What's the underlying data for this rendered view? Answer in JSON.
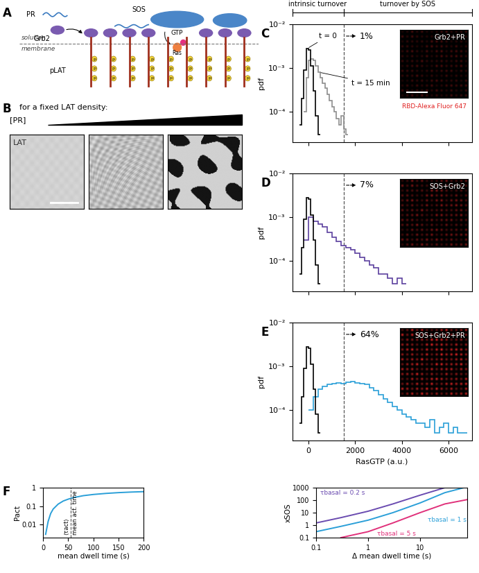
{
  "panel_labels": [
    "A",
    "B",
    "C",
    "D",
    "E",
    "F"
  ],
  "diagram": {
    "pr": "PR",
    "sos": "SOS",
    "grb2": "Grb2",
    "gtp": "GTP",
    "solution": "solution",
    "membrane": "membrane",
    "plat": "pLAT",
    "ras": "Ras",
    "phospho": "p"
  },
  "panel_b": {
    "title": "for a fixed LAT density:",
    "gradient_label": "[PR]",
    "image_label": "LAT"
  },
  "header": {
    "left": "intrinsic turnover",
    "right": "turnover by SOS"
  },
  "chart_data": [
    {
      "type": "histogram",
      "ylabel": "pdf",
      "log": "y",
      "tick_labels": "y",
      "xlim": [
        -700,
        7000
      ],
      "xticks": [
        0,
        2000,
        4000,
        6000
      ],
      "ylim": [
        2e-05,
        0.01
      ],
      "yticks": [
        {
          "value": 0.0001,
          "label": "10⁻⁴"
        },
        {
          "value": 0.001,
          "label": "10⁻³"
        },
        {
          "value": 0.01,
          "label": "10⁻²"
        }
      ],
      "threshold": 1500,
      "threshold_label": "1%",
      "inset_title": "Grb2+PR",
      "inset_caption": "RBD-Alexa Fluor 647",
      "series": [
        {
          "name": "t = 15 min",
          "color": "#8c8c8c",
          "bins": [
            -200,
            -100,
            0,
            100,
            200,
            300,
            400,
            500,
            600,
            700,
            800,
            900,
            1000,
            1100,
            1200,
            1300,
            1400,
            1500,
            1600,
            1700
          ],
          "counts": [
            0.0001,
            0.0006,
            0.0015,
            0.0016,
            0.0015,
            0.0011,
            0.0008,
            0.0006,
            0.00045,
            0.00035,
            0.00025,
            0.00018,
            0.00013,
            0.0001,
            7e-05,
            5e-05,
            8e-05,
            4e-05,
            3e-05
          ]
        },
        {
          "name": "t = 0",
          "color": "#000000",
          "bins": [
            -400,
            -300,
            -200,
            -100,
            0,
            100,
            200,
            300,
            400,
            500
          ],
          "counts": [
            5e-05,
            0.0002,
            0.0009,
            0.0028,
            0.0026,
            0.0011,
            0.0003,
            8e-05,
            3e-05
          ]
        }
      ]
    },
    {
      "type": "histogram",
      "ylabel": "pdf",
      "log": "y",
      "tick_labels": "y",
      "xlim": [
        -700,
        7000
      ],
      "xticks": [
        0,
        2000,
        4000,
        6000
      ],
      "ylim": [
        2e-05,
        0.01
      ],
      "yticks": [
        {
          "value": 0.0001,
          "label": "10⁻⁴"
        },
        {
          "value": 0.001,
          "label": "10⁻³"
        },
        {
          "value": 0.01,
          "label": "10⁻²"
        }
      ],
      "threshold": 1500,
      "threshold_label": "7%",
      "inset_title": "SOS+Grb2",
      "series": [
        {
          "color": "#5b3f9e",
          "bins": [
            -200,
            0,
            200,
            400,
            600,
            800,
            1000,
            1200,
            1400,
            1600,
            1800,
            2000,
            2200,
            2400,
            2600,
            2800,
            3000,
            3200,
            3400,
            3600,
            3800,
            4000,
            4200
          ],
          "counts": [
            0.0003,
            0.001,
            0.0008,
            0.0007,
            0.0006,
            0.00045,
            0.00035,
            0.00028,
            0.00022,
            0.0002,
            0.00018,
            0.00015,
            0.00012,
            0.0001,
            8e-05,
            7e-05,
            5e-05,
            5e-05,
            4e-05,
            3e-05,
            4e-05,
            3e-05
          ]
        },
        {
          "color": "#000000",
          "bins": [
            -400,
            -300,
            -200,
            -100,
            0,
            100,
            200,
            300,
            400,
            500
          ],
          "counts": [
            5e-05,
            0.0002,
            0.0009,
            0.0028,
            0.0026,
            0.0011,
            0.0003,
            8e-05,
            3e-05
          ]
        }
      ]
    },
    {
      "type": "histogram",
      "ylabel": "pdf",
      "xlabel": "RasGTP (a.u.)",
      "log": "y",
      "xlim": [
        -700,
        7000
      ],
      "xticks": [
        0,
        2000,
        4000,
        6000
      ],
      "ylim": [
        2e-05,
        0.01
      ],
      "yticks": [
        {
          "value": 0.0001,
          "label": "10⁻⁴"
        },
        {
          "value": 0.001,
          "label": "10⁻³"
        },
        {
          "value": 0.01,
          "label": "10⁻²"
        }
      ],
      "threshold": 1500,
      "threshold_label": "64%",
      "inset_title": "SOS+Grb2+PR",
      "series": [
        {
          "color": "#2a9fd8",
          "bins": [
            0,
            200,
            400,
            600,
            800,
            1000,
            1200,
            1400,
            1600,
            1800,
            2000,
            2200,
            2400,
            2600,
            2800,
            3000,
            3200,
            3400,
            3600,
            3800,
            4000,
            4200,
            4400,
            4600,
            4800,
            5000,
            5200,
            5400,
            5600,
            5800,
            6000,
            6200,
            6400,
            6600,
            6800
          ],
          "counts": [
            0.0001,
            0.0002,
            0.0003,
            0.00035,
            0.00038,
            0.0004,
            0.00042,
            0.0004,
            0.00043,
            0.00045,
            0.00042,
            0.0004,
            0.00038,
            0.00032,
            0.00028,
            0.00022,
            0.00018,
            0.00015,
            0.00012,
            0.0001,
            8e-05,
            7e-05,
            6e-05,
            5e-05,
            5e-05,
            4e-05,
            6e-05,
            3e-05,
            4e-05,
            5e-05,
            3e-05,
            4e-05,
            3e-05,
            3e-05
          ]
        },
        {
          "color": "#000000",
          "bins": [
            -400,
            -300,
            -200,
            -100,
            0,
            100,
            200,
            300,
            400,
            500
          ],
          "counts": [
            5e-05,
            0.0002,
            0.0009,
            0.0028,
            0.0026,
            0.0011,
            0.0003,
            8e-05,
            3e-05
          ]
        }
      ]
    },
    {
      "type": "line",
      "xlabel": "mean dwell time (s)",
      "ylabel": "Pact",
      "log": "y",
      "xlim": [
        0,
        200
      ],
      "xticks": [
        0,
        50,
        100,
        150,
        200
      ],
      "ylim": [
        0.002,
        1
      ],
      "yticks": [
        0.01,
        0.1,
        1
      ],
      "vline": 55,
      "vline_labels": [
        "⟨τact⟩",
        "mean act. time"
      ],
      "series": [
        {
          "color": "#2a9fd8",
          "x": [
            5,
            10,
            15,
            20,
            30,
            40,
            50,
            60,
            80,
            100,
            125,
            150,
            175,
            200
          ],
          "values": [
            0.003,
            0.015,
            0.04,
            0.07,
            0.13,
            0.19,
            0.24,
            0.29,
            0.37,
            0.43,
            0.49,
            0.54,
            0.58,
            0.61
          ]
        }
      ]
    },
    {
      "type": "line",
      "xlabel": "Δ mean dwell time (s)",
      "ylabel": "xSOS",
      "log": true,
      "xlim": [
        0.1,
        80
      ],
      "xticks": [
        0.1,
        1,
        10
      ],
      "ylim": [
        0.1,
        1000
      ],
      "yticks": [
        0.1,
        1,
        10,
        100,
        1000
      ],
      "series": [
        {
          "name": "τbasal = 0.2 s",
          "color": "#6a4bb0",
          "x": [
            0.1,
            0.3,
            1,
            3,
            10,
            30
          ],
          "values": [
            1.5,
            4,
            13,
            50,
            250,
            1000
          ]
        },
        {
          "name": "τbasal = 1 s",
          "color": "#2a9fd8",
          "x": [
            0.1,
            0.3,
            1,
            3,
            10,
            30,
            70
          ],
          "values": [
            0.3,
            0.8,
            2.5,
            10,
            60,
            400,
            1000
          ]
        },
        {
          "name": "τbasal = 5 s",
          "color": "#e0307a",
          "x": [
            0.3,
            1,
            3,
            10,
            30,
            80
          ],
          "values": [
            0.1,
            0.3,
            1.5,
            10,
            50,
            110
          ]
        }
      ]
    }
  ]
}
